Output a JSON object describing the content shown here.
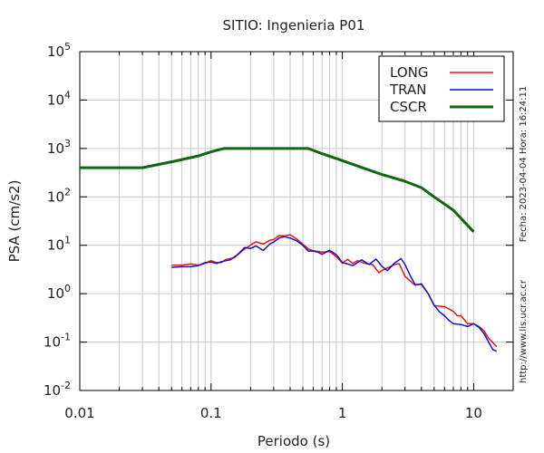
{
  "chart_data": {
    "type": "line",
    "title": "SITIO: Ingenieria P01",
    "xlabel": "Periodo (s)",
    "ylabel": "PSA (cm/s2)",
    "x_scale": "log",
    "y_scale": "log",
    "xlim": [
      0.01,
      20
    ],
    "ylim": [
      0.01,
      100000
    ],
    "x_ticks": [
      {
        "value": 0.01,
        "label": "0.01"
      },
      {
        "value": 0.1,
        "label": "0.1"
      },
      {
        "value": 1,
        "label": "1"
      },
      {
        "value": 10,
        "label": "10"
      }
    ],
    "y_ticks": [
      {
        "value": 0.01,
        "base": "10",
        "exp": "-2"
      },
      {
        "value": 0.1,
        "base": "10",
        "exp": "-1"
      },
      {
        "value": 1,
        "base": "10",
        "exp": "0"
      },
      {
        "value": 10,
        "base": "10",
        "exp": "1"
      },
      {
        "value": 100,
        "base": "10",
        "exp": "2"
      },
      {
        "value": 1000,
        "base": "10",
        "exp": "3"
      },
      {
        "value": 10000,
        "base": "10",
        "exp": "4"
      },
      {
        "value": 100000,
        "base": "10",
        "exp": "5"
      }
    ],
    "grid": true,
    "legend_position": "top-right",
    "series": [
      {
        "name": "LONG",
        "color": "#ee1111",
        "x": [
          0.05,
          0.06,
          0.07,
          0.08,
          0.09,
          0.1,
          0.11,
          0.12,
          0.13,
          0.15,
          0.17,
          0.2,
          0.22,
          0.25,
          0.28,
          0.3,
          0.33,
          0.36,
          0.4,
          0.45,
          0.5,
          0.55,
          0.6,
          0.7,
          0.8,
          0.9,
          1.0,
          1.1,
          1.2,
          1.3,
          1.5,
          1.7,
          1.9,
          2.0,
          2.2,
          2.5,
          2.7,
          3.0,
          3.5,
          4.0,
          4.5,
          5.0,
          5.5,
          6.0,
          7.0,
          7.5,
          8.0,
          9.0,
          10.0,
          11.0,
          12.0,
          13.0,
          15.0
        ],
        "y": [
          3.9,
          3.9,
          4.1,
          3.9,
          4.2,
          4.8,
          4.4,
          4.4,
          5.1,
          5.5,
          7.4,
          10.2,
          11.8,
          10.6,
          12.7,
          13.2,
          15.9,
          15.6,
          16.5,
          13.4,
          10.6,
          8.4,
          7.7,
          7.2,
          7.4,
          5.8,
          4.3,
          5.1,
          4.2,
          4.8,
          4.2,
          4.0,
          2.7,
          3.0,
          3.4,
          4.0,
          4.2,
          2.3,
          1.55,
          1.55,
          1.0,
          0.57,
          0.55,
          0.54,
          0.43,
          0.35,
          0.35,
          0.24,
          0.24,
          0.21,
          0.17,
          0.12,
          0.08
        ]
      },
      {
        "name": "TRAN",
        "color": "#1111cc",
        "x": [
          0.05,
          0.06,
          0.07,
          0.08,
          0.09,
          0.1,
          0.11,
          0.12,
          0.14,
          0.16,
          0.18,
          0.2,
          0.22,
          0.25,
          0.28,
          0.3,
          0.33,
          0.36,
          0.4,
          0.45,
          0.5,
          0.55,
          0.6,
          0.65,
          0.7,
          0.8,
          0.9,
          1.0,
          1.1,
          1.2,
          1.4,
          1.6,
          1.8,
          2.0,
          2.2,
          2.5,
          2.8,
          3.0,
          3.3,
          3.6,
          4.0,
          4.5,
          5.0,
          5.5,
          6.0,
          6.5,
          7.0,
          8.0,
          9.0,
          10.0,
          11.0,
          12.0,
          13.0,
          14.0,
          15.0
        ],
        "y": [
          3.5,
          3.6,
          3.6,
          3.8,
          4.4,
          4.5,
          4.2,
          4.6,
          5.0,
          6.5,
          9.0,
          8.6,
          9.7,
          7.8,
          10.6,
          11.7,
          14.2,
          15.0,
          14.1,
          12.3,
          10.0,
          7.6,
          7.6,
          7.2,
          6.5,
          7.9,
          6.4,
          4.4,
          4.1,
          3.8,
          5.0,
          4.0,
          5.2,
          3.7,
          3.0,
          4.3,
          5.3,
          4.0,
          2.3,
          1.5,
          1.6,
          1.0,
          0.58,
          0.42,
          0.35,
          0.28,
          0.24,
          0.23,
          0.21,
          0.24,
          0.2,
          0.15,
          0.1,
          0.07,
          0.065
        ]
      },
      {
        "name": "CSCR",
        "color": "#116611",
        "x": [
          0.01,
          0.03,
          0.05,
          0.08,
          0.1,
          0.125,
          0.2,
          0.3,
          0.4,
          0.55,
          0.7,
          1.0,
          1.5,
          2.0,
          3.0,
          4.0,
          5.0,
          7.0,
          10.0
        ],
        "y": [
          400,
          400,
          530,
          700,
          850,
          1000,
          1000,
          1000,
          1000,
          1000,
          780,
          560,
          380,
          290,
          210,
          155,
          100,
          53,
          19
        ]
      }
    ]
  },
  "side_labels": {
    "date": "Fecha: 2023-04-04  Hora: 16:24:11",
    "url": "http://www.lis.ucr.ac.cr"
  }
}
